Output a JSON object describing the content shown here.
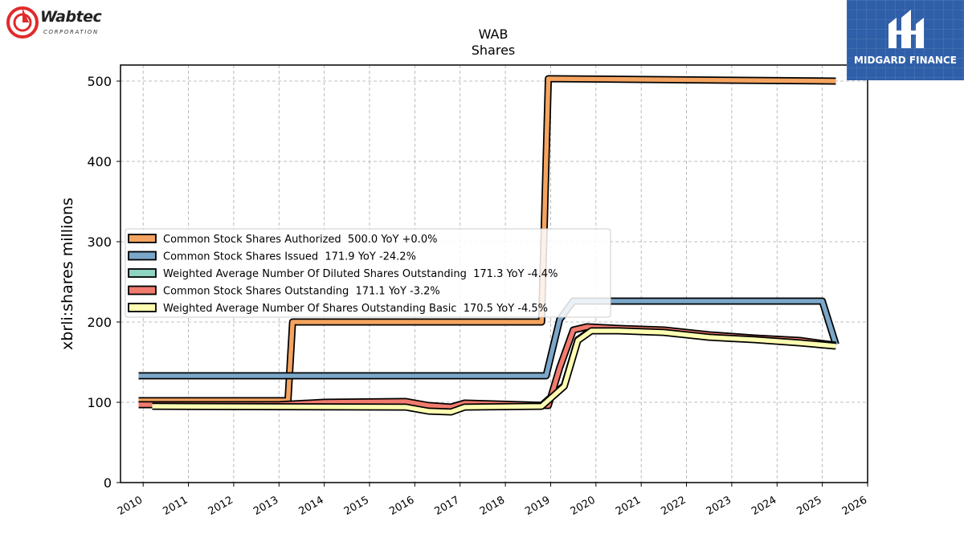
{
  "chart_data": {
    "type": "line",
    "title": "WAB",
    "subtitle": "Shares",
    "ylabel": "xbrli:shares millions",
    "xlabel": "",
    "xlim": [
      2009.5,
      2026
    ],
    "ylim": [
      0,
      520
    ],
    "x_ticks": [
      "2010",
      "2011",
      "2012",
      "2013",
      "2014",
      "2015",
      "2016",
      "2017",
      "2018",
      "2019",
      "2020",
      "2021",
      "2022",
      "2023",
      "2024",
      "2025",
      "2026"
    ],
    "y_ticks": [
      0,
      100,
      200,
      300,
      400,
      500
    ],
    "grid": true,
    "legend_position": "center-left",
    "series": [
      {
        "name": "Common Stock Shares Authorized  500.0 YoY +0.0%",
        "color": "#f4a460",
        "points": [
          [
            2009.9,
            102
          ],
          [
            2013.2,
            102
          ],
          [
            2013.3,
            200
          ],
          [
            2018.8,
            200
          ],
          [
            2018.95,
            503
          ],
          [
            2025.3,
            500
          ]
        ]
      },
      {
        "name": "Common Stock Shares Issued  171.9 YoY -24.2%",
        "color": "#7ba7c9",
        "points": [
          [
            2009.9,
            133
          ],
          [
            2018.9,
            133
          ],
          [
            2019.2,
            203
          ],
          [
            2019.5,
            226
          ],
          [
            2025.0,
            226
          ],
          [
            2025.3,
            172
          ]
        ]
      },
      {
        "name": "Weighted Average Number Of Diluted Shares Outstanding  171.3 YoY -4.4%",
        "color": "#8fd3c1",
        "points": [
          [
            2010.2,
            96
          ],
          [
            2015.8,
            95
          ],
          [
            2016.3,
            90
          ],
          [
            2016.8,
            89
          ],
          [
            2017.1,
            95
          ],
          [
            2018.8,
            96
          ],
          [
            2019.3,
            121
          ],
          [
            2019.6,
            178
          ],
          [
            2019.9,
            190
          ],
          [
            2020.5,
            190
          ],
          [
            2021.5,
            188
          ],
          [
            2022.5,
            182
          ],
          [
            2023.5,
            179
          ],
          [
            2024.5,
            175
          ],
          [
            2025.3,
            171
          ]
        ]
      },
      {
        "name": "Common Stock Shares Outstanding  171.1 YoY -3.2%",
        "color": "#f07b6e",
        "points": [
          [
            2009.9,
            97
          ],
          [
            2013.0,
            97
          ],
          [
            2014.0,
            100
          ],
          [
            2015.8,
            101
          ],
          [
            2016.3,
            96
          ],
          [
            2016.8,
            94
          ],
          [
            2017.1,
            99
          ],
          [
            2018.95,
            96
          ],
          [
            2019.2,
            143
          ],
          [
            2019.5,
            190
          ],
          [
            2019.8,
            194
          ],
          [
            2020.5,
            192
          ],
          [
            2021.5,
            190
          ],
          [
            2022.5,
            184
          ],
          [
            2023.5,
            180
          ],
          [
            2024.5,
            177
          ],
          [
            2025.3,
            171
          ]
        ]
      },
      {
        "name": "Weighted Average Number Of Shares Outstanding Basic  170.5 YoY -4.5%",
        "color": "#ffffb3",
        "points": [
          [
            2010.2,
            95
          ],
          [
            2015.8,
            94
          ],
          [
            2016.3,
            89
          ],
          [
            2016.8,
            88
          ],
          [
            2017.1,
            94
          ],
          [
            2018.8,
            95
          ],
          [
            2019.3,
            120
          ],
          [
            2019.6,
            177
          ],
          [
            2019.9,
            189
          ],
          [
            2020.5,
            189
          ],
          [
            2021.5,
            187
          ],
          [
            2022.5,
            181
          ],
          [
            2023.5,
            178
          ],
          [
            2024.5,
            174
          ],
          [
            2025.3,
            170
          ]
        ]
      }
    ]
  },
  "logos": {
    "left_brand": "Wabtec",
    "left_sub": "CORPORATION",
    "right_brand": "MIDGARD FINANCE"
  }
}
